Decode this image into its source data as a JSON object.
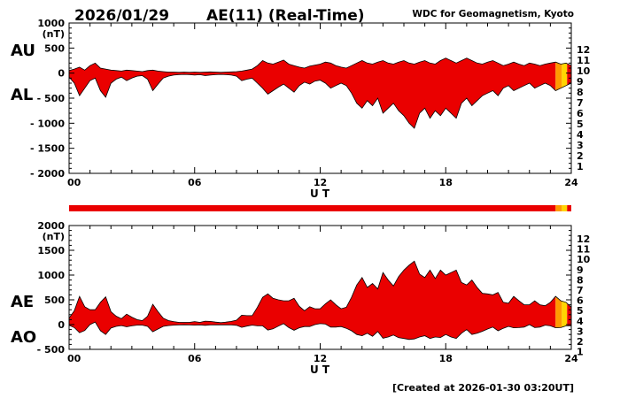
{
  "header": {
    "date": "2026/01/29",
    "title": "AE(11) (Real-Time)",
    "credit": "WDC for Geomagnetism, Kyoto"
  },
  "footer": {
    "created": "[Created at 2026-01-30 03:20UT]"
  },
  "axes": {
    "x_title": "U T",
    "x_major": [
      {
        "t": 0,
        "label": "00"
      },
      {
        "t": 6,
        "label": "06"
      },
      {
        "t": 12,
        "label": "12"
      },
      {
        "t": 18,
        "label": "18"
      },
      {
        "t": 24,
        "label": "24"
      }
    ]
  },
  "panels": {
    "top": {
      "label_upper": "AU",
      "label_lower": "AL",
      "unit": "(nT)",
      "y_ticks": [
        {
          "v": 1000,
          "label": "1000"
        },
        {
          "v": 500,
          "label": "500"
        },
        {
          "v": 0,
          "label": "0"
        },
        {
          "v": -500,
          "label": "- 500"
        },
        {
          "v": -1000,
          "label": "- 1000"
        },
        {
          "v": -1500,
          "label": "- 1500"
        },
        {
          "v": -2000,
          "label": "- 2000"
        }
      ]
    },
    "bottom": {
      "label_upper": "AE",
      "label_lower": "AO",
      "unit": "(nT)",
      "y_ticks": [
        {
          "v": 2000,
          "label": "2000"
        },
        {
          "v": 1500,
          "label": "1500"
        },
        {
          "v": 1000,
          "label": "1000"
        },
        {
          "v": 500,
          "label": "500"
        },
        {
          "v": 0,
          "label": "0"
        },
        {
          "v": -500,
          "label": "- 500"
        }
      ]
    }
  },
  "legend": {
    "items": [
      {
        "count": "12",
        "color": "#ea0000"
      },
      {
        "count": "11",
        "color": "#ff4400"
      },
      {
        "count": "10",
        "color": "#ff9900"
      },
      {
        "count": "9",
        "color": "#ffd500"
      },
      {
        "count": "8",
        "color": "#00b8b8"
      },
      {
        "count": "7",
        "color": "#4aa8ff"
      },
      {
        "count": "6",
        "color": "#1414e6"
      },
      {
        "count": "5",
        "color": "#8a2be2"
      },
      {
        "count": "4",
        "color": "#e619e6"
      },
      {
        "count": "3",
        "color": "#1a1a1a"
      },
      {
        "count": "2",
        "color": "#8c8c8c"
      },
      {
        "count": "1",
        "color": "#c8c8c8"
      }
    ]
  },
  "station_segments": [
    {
      "from_hour": 0,
      "to_hour": 23.25,
      "stations": 12,
      "color": "#ea0000"
    },
    {
      "from_hour": 23.25,
      "to_hour": 23.55,
      "stations": 10,
      "color": "#ff9900"
    },
    {
      "from_hour": 23.55,
      "to_hour": 23.8,
      "stations": 9,
      "color": "#ffd500"
    },
    {
      "from_hour": 23.8,
      "to_hour": 24,
      "stations": 12,
      "color": "#ea0000"
    }
  ],
  "chart_data": [
    {
      "type": "area",
      "title": "AU / AL auroral electrojet indices (top panel)",
      "xlabel": "U T",
      "ylabel": "nT",
      "xlim": [
        0,
        24
      ],
      "ylim": [
        -2000,
        1000
      ],
      "x": {
        "start": 0,
        "end": 24,
        "step_hours": 0.25
      },
      "series": [
        {
          "name": "AU",
          "values": [
            50,
            80,
            120,
            60,
            150,
            200,
            100,
            80,
            60,
            50,
            40,
            60,
            50,
            40,
            30,
            50,
            60,
            40,
            30,
            20,
            20,
            15,
            20,
            15,
            20,
            15,
            20,
            25,
            20,
            15,
            20,
            25,
            30,
            40,
            60,
            80,
            150,
            250,
            200,
            180,
            220,
            260,
            180,
            150,
            120,
            100,
            140,
            160,
            180,
            220,
            200,
            150,
            120,
            100,
            150,
            200,
            250,
            200,
            180,
            220,
            250,
            200,
            180,
            220,
            250,
            200,
            180,
            220,
            250,
            200,
            180,
            250,
            300,
            250,
            200,
            250,
            300,
            250,
            200,
            180,
            220,
            250,
            200,
            150,
            180,
            220,
            180,
            150,
            200,
            180,
            150,
            180,
            200,
            220,
            180,
            200,
            150
          ]
        },
        {
          "name": "AL",
          "values": [
            -80,
            -200,
            -450,
            -300,
            -150,
            -100,
            -350,
            -480,
            -200,
            -120,
            -80,
            -150,
            -100,
            -60,
            -50,
            -120,
            -350,
            -220,
            -100,
            -60,
            -40,
            -30,
            -25,
            -30,
            -40,
            -30,
            -50,
            -40,
            -30,
            -25,
            -30,
            -40,
            -60,
            -150,
            -120,
            -100,
            -200,
            -300,
            -420,
            -350,
            -280,
            -220,
            -300,
            -380,
            -250,
            -180,
            -220,
            -160,
            -140,
            -200,
            -300,
            -250,
            -200,
            -250,
            -400,
            -600,
            -700,
            -550,
            -650,
            -500,
            -800,
            -700,
            -600,
            -750,
            -850,
            -1000,
            -1100,
            -800,
            -700,
            -900,
            -750,
            -850,
            -700,
            -800,
            -900,
            -600,
            -500,
            -650,
            -550,
            -450,
            -400,
            -350,
            -450,
            -300,
            -250,
            -350,
            -300,
            -250,
            -200,
            -300,
            -250,
            -200,
            -250,
            -350,
            -300,
            -250,
            -200
          ]
        }
      ]
    },
    {
      "type": "area",
      "title": "AE / AO auroral electrojet indices (bottom panel)",
      "xlabel": "U T",
      "ylabel": "nT",
      "xlim": [
        0,
        24
      ],
      "ylim": [
        -500,
        2000
      ],
      "x": {
        "start": 0,
        "end": 24,
        "step_hours": 0.25
      },
      "series": [
        {
          "name": "AE",
          "values": [
            130,
            280,
            570,
            360,
            300,
            300,
            450,
            560,
            260,
            170,
            120,
            210,
            150,
            100,
            80,
            170,
            410,
            260,
            130,
            80,
            60,
            45,
            45,
            45,
            60,
            45,
            70,
            65,
            50,
            40,
            50,
            65,
            90,
            190,
            180,
            180,
            350,
            550,
            620,
            530,
            500,
            480,
            480,
            530,
            370,
            280,
            360,
            320,
            320,
            420,
            500,
            400,
            320,
            350,
            550,
            800,
            950,
            750,
            830,
            720,
            1050,
            900,
            780,
            970,
            1100,
            1200,
            1280,
            1020,
            950,
            1100,
            930,
            1100,
            1000,
            1050,
            1100,
            850,
            800,
            900,
            750,
            630,
            620,
            600,
            650,
            450,
            430,
            570,
            480,
            400,
            400,
            480,
            400,
            380,
            450,
            570,
            480,
            450,
            350
          ]
        },
        {
          "name": "AO",
          "values": [
            -15,
            -60,
            -165,
            -120,
            0,
            50,
            -125,
            -200,
            -70,
            -35,
            -20,
            -45,
            -25,
            -10,
            -10,
            -35,
            -145,
            -90,
            -35,
            -20,
            -10,
            -8,
            -3,
            -8,
            -10,
            -8,
            -15,
            -8,
            -5,
            -5,
            -5,
            -8,
            -15,
            -55,
            -30,
            -10,
            -25,
            -25,
            -110,
            -85,
            -30,
            20,
            -60,
            -115,
            -65,
            -40,
            -40,
            0,
            20,
            10,
            -50,
            -50,
            -40,
            -75,
            -125,
            -200,
            -225,
            -175,
            -235,
            -140,
            -275,
            -250,
            -210,
            -265,
            -280,
            -300,
            -290,
            -250,
            -225,
            -280,
            -250,
            -260,
            -200,
            -250,
            -280,
            -175,
            -100,
            -200,
            -175,
            -135,
            -90,
            -50,
            -125,
            -75,
            -35,
            -65,
            -60,
            -50,
            0,
            -60,
            -50,
            -10,
            -25,
            -65,
            -60,
            -25,
            -25
          ]
        }
      ]
    }
  ]
}
